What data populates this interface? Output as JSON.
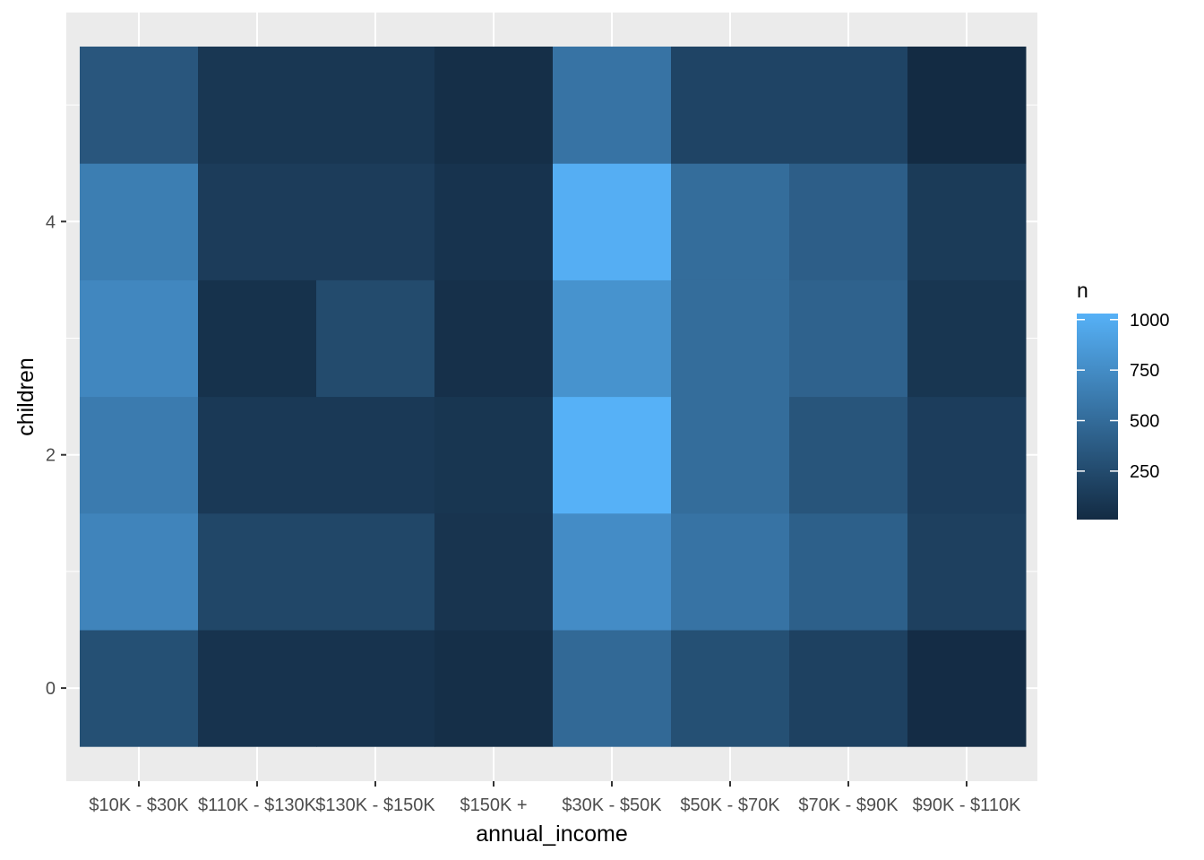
{
  "chart_data": {
    "type": "heatmap",
    "title": "",
    "xlabel": "annual_income",
    "ylabel": "children",
    "x_categories": [
      "$10K - $30K",
      "$110K - $130K",
      "$130K - $150K",
      "$150K +",
      "$30K - $50K",
      "$50K - $70K",
      "$70K - $90K",
      "$90K - $110K"
    ],
    "y_values": [
      0,
      1,
      2,
      3,
      4,
      5
    ],
    "y_ticks": [
      0,
      2,
      4
    ],
    "values": [
      [
        290,
        70,
        70,
        40,
        480,
        290,
        180,
        20
      ],
      [
        690,
        220,
        220,
        80,
        750,
        560,
        410,
        170
      ],
      [
        620,
        120,
        120,
        90,
        1030,
        510,
        330,
        150
      ],
      [
        710,
        60,
        250,
        50,
        800,
        510,
        430,
        90
      ],
      [
        640,
        140,
        140,
        70,
        1010,
        510,
        400,
        130
      ],
      [
        340,
        100,
        100,
        40,
        560,
        200,
        200,
        10
      ]
    ],
    "legend": {
      "title": "n",
      "ticks": [
        250,
        500,
        750,
        1000
      ],
      "range": [
        10,
        1030
      ],
      "position": "right",
      "low_color": "#132B43",
      "high_color": "#56B1F7"
    },
    "grid": true,
    "panel_background": "#EBEBEB"
  }
}
